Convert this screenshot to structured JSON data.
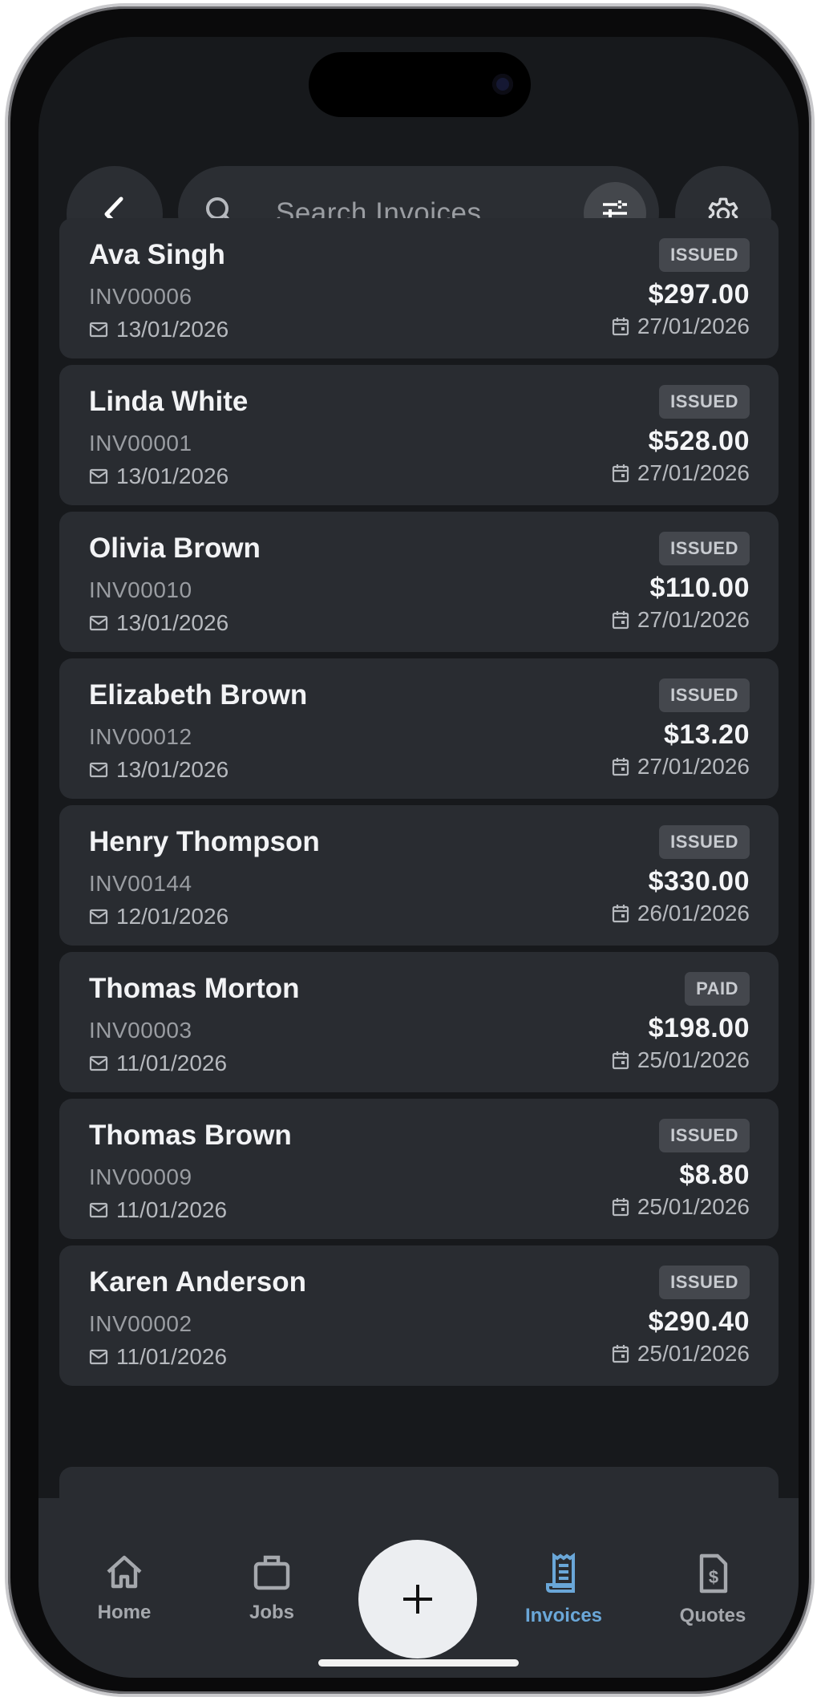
{
  "header": {
    "back_icon": "chevron-left-icon",
    "search_placeholder": "Search Invoices",
    "filter_icon": "tune-icon",
    "settings_icon": "gear-icon"
  },
  "invoices": [
    {
      "name": "Ava Singh",
      "number": "INV00006",
      "sent": "13/01/2026",
      "status": "ISSUED",
      "amount": "$297.00",
      "due": "27/01/2026"
    },
    {
      "name": "Linda White",
      "number": "INV00001",
      "sent": "13/01/2026",
      "status": "ISSUED",
      "amount": "$528.00",
      "due": "27/01/2026"
    },
    {
      "name": "Olivia Brown",
      "number": "INV00010",
      "sent": "13/01/2026",
      "status": "ISSUED",
      "amount": "$110.00",
      "due": "27/01/2026"
    },
    {
      "name": "Elizabeth Brown",
      "number": "INV00012",
      "sent": "13/01/2026",
      "status": "ISSUED",
      "amount": "$13.20",
      "due": "27/01/2026"
    },
    {
      "name": "Henry Thompson",
      "number": "INV00144",
      "sent": "12/01/2026",
      "status": "ISSUED",
      "amount": "$330.00",
      "due": "26/01/2026"
    },
    {
      "name": "Thomas Morton",
      "number": "INV00003",
      "sent": "11/01/2026",
      "status": "PAID",
      "amount": "$198.00",
      "due": "25/01/2026"
    },
    {
      "name": "Thomas Brown",
      "number": "INV00009",
      "sent": "11/01/2026",
      "status": "ISSUED",
      "amount": "$8.80",
      "due": "25/01/2026"
    },
    {
      "name": "Karen Anderson",
      "number": "INV00002",
      "sent": "11/01/2026",
      "status": "ISSUED",
      "amount": "$290.40",
      "due": "25/01/2026"
    }
  ],
  "nav": {
    "items": [
      {
        "label": "Home",
        "icon": "home-icon"
      },
      {
        "label": "Jobs",
        "icon": "briefcase-icon"
      },
      {
        "label": "Invoices",
        "icon": "receipt-icon",
        "active": true
      },
      {
        "label": "Quotes",
        "icon": "quote-document-icon"
      }
    ],
    "fab_icon": "plus-icon"
  },
  "colors": {
    "background": "#17191c",
    "card": "#292c31",
    "accent": "#6aa7d8"
  }
}
